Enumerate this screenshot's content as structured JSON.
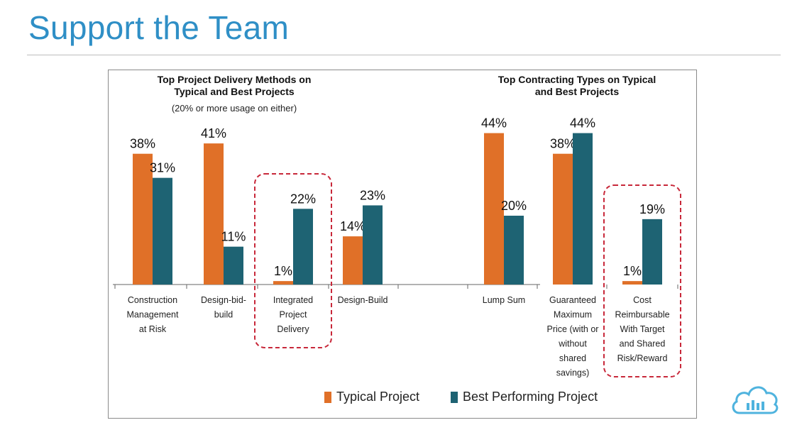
{
  "slide": {
    "title": "Support the Team"
  },
  "colors": {
    "typical": "#e07028",
    "best": "#1e6373",
    "highlight": "#c8283a",
    "title": "#2f8fc6"
  },
  "icons": {
    "logo": "cloud-icon"
  },
  "chart_data": [
    {
      "type": "bar",
      "title": "Top Project Delivery Methods on Typical and Best Projects",
      "title_lines": [
        "Top Project Delivery Methods on",
        "Typical and Best Projects"
      ],
      "subtitle": "(20% or more usage on either)",
      "unit": "%",
      "ylim": [
        0,
        50
      ],
      "categories": [
        "Construction Management at Risk",
        "Design-bid-build",
        "Integrated Project Delivery",
        "Design-Build"
      ],
      "category_lines": [
        [
          "Construction",
          "Management",
          "at Risk"
        ],
        [
          "Design-bid-",
          "build"
        ],
        [
          "Integrated",
          "Project",
          "Delivery"
        ],
        [
          "Design-Build"
        ]
      ],
      "series": [
        {
          "name": "Typical Project",
          "values": [
            38,
            41,
            1,
            14
          ]
        },
        {
          "name": "Best Performing Project",
          "values": [
            31,
            11,
            22,
            23
          ]
        }
      ],
      "highlighted_category": "Integrated Project Delivery"
    },
    {
      "type": "bar",
      "title": "Top Contracting Types on Typical and Best Projects",
      "title_lines": [
        "Top Contracting Types on Typical",
        "and Best Projects"
      ],
      "subtitle": "",
      "unit": "%",
      "ylim": [
        0,
        50
      ],
      "categories": [
        "Lump Sum",
        "Guaranteed Maximum Price (with or without shared savings)",
        "Cost Reimbursable With Target and Shared Risk/Reward"
      ],
      "category_lines": [
        [
          "Lump Sum"
        ],
        [
          "Guaranteed",
          "Maximum",
          "Price (with or",
          "without",
          "shared",
          "savings)"
        ],
        [
          "Cost",
          "Reimbursable",
          "With Target",
          "and Shared",
          "Risk/Reward"
        ]
      ],
      "series": [
        {
          "name": "Typical Project",
          "values": [
            44,
            38,
            1
          ]
        },
        {
          "name": "Best Performing Project",
          "values": [
            20,
            44,
            19
          ]
        }
      ],
      "highlighted_category": "Cost Reimbursable With Target and Shared Risk/Reward"
    }
  ],
  "legend": {
    "position": "bottom",
    "items": [
      {
        "label": "Typical Project",
        "color": "#e07028"
      },
      {
        "label": "Best Performing Project",
        "color": "#1e6373"
      }
    ]
  }
}
